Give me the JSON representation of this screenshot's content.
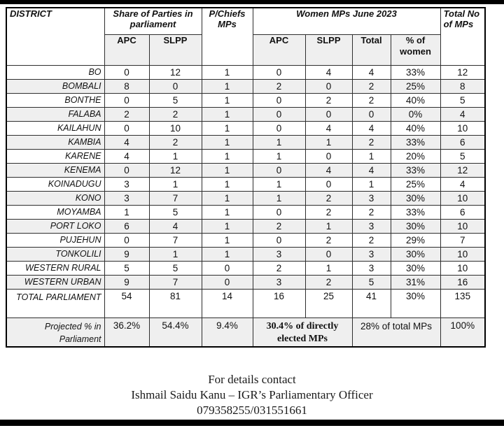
{
  "table": {
    "headers": {
      "district": "DISTRICT",
      "share_of_parties": "Share of Parties in parliament",
      "pchiefs": "P/Chiefs MPs",
      "women_mps": "Women MPs June 2023",
      "total_mps": "Total No of MPs",
      "sub": [
        "APC",
        "SLPP",
        "APC",
        "SLPP",
        "Total",
        "% of women"
      ]
    },
    "rows": [
      {
        "district": "BO",
        "values": [
          "0",
          "12",
          "1",
          "0",
          "4",
          "4",
          "33%",
          "12"
        ]
      },
      {
        "district": "BOMBALI",
        "values": [
          "8",
          "0",
          "1",
          "2",
          "0",
          "2",
          "25%",
          "8"
        ]
      },
      {
        "district": "BONTHE",
        "values": [
          "0",
          "5",
          "1",
          "0",
          "2",
          "2",
          "40%",
          "5"
        ]
      },
      {
        "district": "FALABA",
        "values": [
          "2",
          "2",
          "1",
          "0",
          "0",
          "0",
          "0%",
          "4"
        ]
      },
      {
        "district": "KAILAHUN",
        "values": [
          "0",
          "10",
          "1",
          "0",
          "4",
          "4",
          "40%",
          "10"
        ]
      },
      {
        "district": "KAMBIA",
        "values": [
          "4",
          "2",
          "1",
          "1",
          "1",
          "2",
          "33%",
          "6"
        ]
      },
      {
        "district": "KARENE",
        "values": [
          "4",
          "1",
          "1",
          "1",
          "0",
          "1",
          "20%",
          "5"
        ]
      },
      {
        "district": "KENEMA",
        "values": [
          "0",
          "12",
          "1",
          "0",
          "4",
          "4",
          "33%",
          "12"
        ]
      },
      {
        "district": "KOINADUGU",
        "values": [
          "3",
          "1",
          "1",
          "1",
          "0",
          "1",
          "25%",
          "4"
        ]
      },
      {
        "district": "KONO",
        "values": [
          "3",
          "7",
          "1",
          "1",
          "2",
          "3",
          "30%",
          "10"
        ]
      },
      {
        "district": "MOYAMBA",
        "values": [
          "1",
          "5",
          "1",
          "0",
          "2",
          "2",
          "33%",
          "6"
        ]
      },
      {
        "district": "PORT LOKO",
        "values": [
          "6",
          "4",
          "1",
          "2",
          "1",
          "3",
          "30%",
          "10"
        ]
      },
      {
        "district": "PUJEHUN",
        "values": [
          "0",
          "7",
          "1",
          "0",
          "2",
          "2",
          "29%",
          "7"
        ]
      },
      {
        "district": "TONKOLILI",
        "values": [
          "9",
          "1",
          "1",
          "3",
          "0",
          "3",
          "30%",
          "10"
        ]
      },
      {
        "district": "WESTERN RURAL",
        "values": [
          "5",
          "5",
          "0",
          "2",
          "1",
          "3",
          "30%",
          "10"
        ]
      },
      {
        "district": "WESTERN URBAN",
        "values": [
          "9",
          "7",
          "0",
          "3",
          "2",
          "5",
          "31%",
          "16"
        ]
      }
    ],
    "total_row": {
      "label": "TOTAL PARLIAMENT",
      "values": [
        "54",
        "81",
        "14",
        "16",
        "25",
        "41",
        "30%",
        "135"
      ]
    },
    "projected_row": {
      "label": "Projected % in Parliament",
      "apc": "36.2%",
      "slpp": "54.4%",
      "pchiefs": "9.4%",
      "women_elected": "30.4% of directly elected MPs",
      "women_total": "28% of total MPs",
      "total": "100%"
    }
  },
  "footer": {
    "line1": "For details contact",
    "line2": "Ishmail Saidu Kanu – IGR’s Parliamentary Officer",
    "line3": "079358255/031551661"
  },
  "colors": {
    "row_alt": "#efefef",
    "subheader_bg": "#efefef",
    "border": "#2e2e2e",
    "bar": "#000000"
  }
}
